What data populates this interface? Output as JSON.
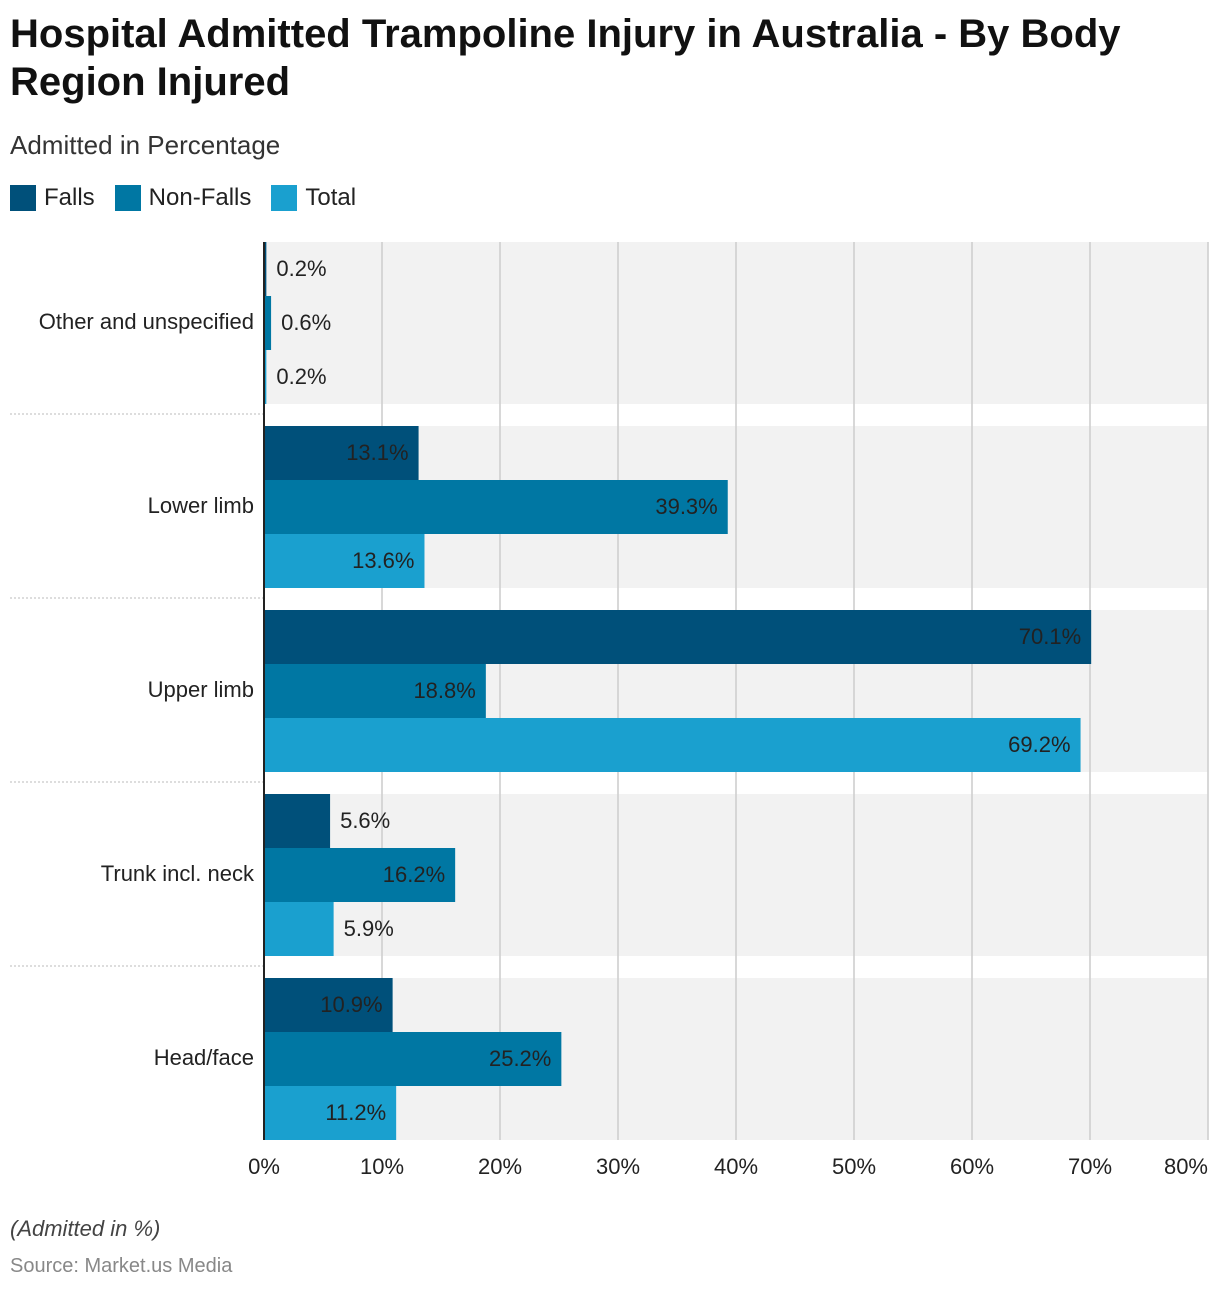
{
  "chart_data": {
    "type": "bar",
    "orientation": "horizontal",
    "title": "Hospital Admitted Trampoline Injury in Australia - By Body Region Injured",
    "subtitle": "Admitted in Percentage",
    "note": "(Admitted in %)",
    "source": "Source: Market.us Media",
    "categories": [
      "Other and unspecified",
      "Lower limb",
      "Upper limb",
      "Trunk incl. neck",
      "Head/face"
    ],
    "series": [
      {
        "name": "Falls",
        "color": "#00507a",
        "values": [
          0.2,
          13.1,
          70.1,
          5.6,
          10.9
        ],
        "value_labels": [
          "0.2%",
          "13.1%",
          "70.1%",
          "5.6%",
          "10.9%"
        ]
      },
      {
        "name": "Non-Falls",
        "color": "#0077a3",
        "values": [
          0.6,
          39.3,
          18.8,
          16.2,
          25.2
        ],
        "value_labels": [
          "0.6%",
          "39.3%",
          "18.8%",
          "16.2%",
          "25.2%"
        ]
      },
      {
        "name": "Total",
        "color": "#1aa0cf",
        "values": [
          0.2,
          13.6,
          69.2,
          5.9,
          11.2
        ],
        "value_labels": [
          "0.2%",
          "13.6%",
          "69.2%",
          "5.9%",
          "11.2%"
        ]
      }
    ],
    "xlim": [
      0,
      80
    ],
    "xticks": [
      {
        "value": 0,
        "label": "0%"
      },
      {
        "value": 10,
        "label": "10%"
      },
      {
        "value": 20,
        "label": "20%"
      },
      {
        "value": 30,
        "label": "30%"
      },
      {
        "value": 40,
        "label": "40%"
      },
      {
        "value": 50,
        "label": "50%"
      },
      {
        "value": 60,
        "label": "60%"
      },
      {
        "value": 70,
        "label": "70%"
      },
      {
        "value": 80,
        "label": "80%"
      }
    ],
    "grid": true
  }
}
